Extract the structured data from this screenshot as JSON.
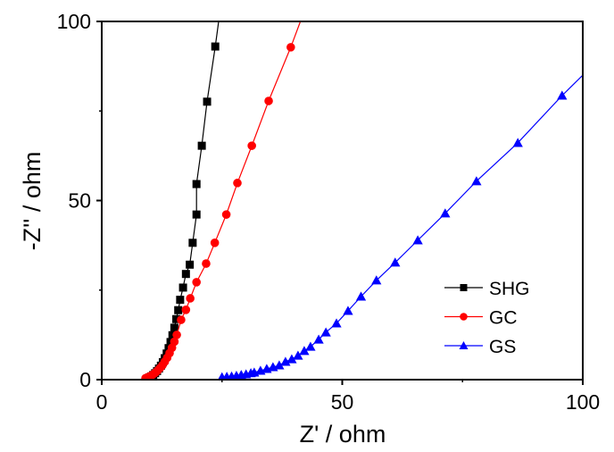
{
  "chart_data": {
    "type": "scatter",
    "title": "",
    "xlabel": "Z' / ohm",
    "ylabel": "-Z'' / ohm",
    "xlim": [
      0,
      100
    ],
    "ylim": [
      0,
      100
    ],
    "x_ticks": [
      0,
      50,
      100
    ],
    "y_ticks": [
      0,
      50,
      100
    ],
    "x_minor_ticks": [
      25,
      75
    ],
    "y_minor_ticks": [
      25,
      75
    ],
    "x_tick_labels": [
      "0",
      "50",
      "100"
    ],
    "y_tick_labels": [
      "0",
      "50",
      "100"
    ],
    "grid": false,
    "legend_position": "bottom-right",
    "series": [
      {
        "name": "SHG",
        "color": "#000000",
        "marker": "square",
        "points": [
          [
            9.5,
            0.3
          ],
          [
            9.9,
            0.6
          ],
          [
            10.3,
            0.9
          ],
          [
            10.7,
            1.3
          ],
          [
            11.1,
            1.8
          ],
          [
            11.5,
            2.4
          ],
          [
            11.9,
            3.1
          ],
          [
            12.3,
            3.9
          ],
          [
            12.7,
            4.9
          ],
          [
            13.1,
            6.0
          ],
          [
            13.5,
            7.3
          ],
          [
            13.9,
            8.8
          ],
          [
            14.3,
            10.5
          ],
          [
            14.7,
            12.4
          ],
          [
            15.1,
            14.5
          ],
          [
            15.5,
            16.9
          ],
          [
            15.9,
            19.4
          ],
          [
            16.3,
            22.3
          ],
          [
            16.9,
            25.7
          ],
          [
            17.5,
            29.5
          ],
          [
            18.3,
            32.1
          ],
          [
            18.9,
            38.2
          ],
          [
            19.7,
            46.1
          ],
          [
            19.7,
            54.6
          ],
          [
            20.8,
            65.3
          ],
          [
            21.9,
            77.6
          ],
          [
            23.6,
            93.0
          ],
          [
            24.3,
            100
          ]
        ]
      },
      {
        "name": "GC",
        "color": "#ff0000",
        "marker": "circle",
        "points": [
          [
            9.1,
            0.4
          ],
          [
            9.6,
            0.7
          ],
          [
            10.1,
            1.0
          ],
          [
            10.6,
            1.4
          ],
          [
            11.1,
            1.9
          ],
          [
            11.6,
            2.5
          ],
          [
            12.1,
            3.2
          ],
          [
            12.6,
            4.0
          ],
          [
            13.1,
            5.0
          ],
          [
            13.6,
            6.1
          ],
          [
            14.1,
            7.4
          ],
          [
            14.6,
            8.9
          ],
          [
            15.1,
            10.6
          ],
          [
            15.6,
            12.5
          ],
          [
            16.5,
            16.7
          ],
          [
            17.5,
            19.5
          ],
          [
            18.4,
            22.7
          ],
          [
            19.7,
            27.2
          ],
          [
            21.7,
            32.4
          ],
          [
            23.5,
            38.2
          ],
          [
            25.9,
            46.1
          ],
          [
            28.2,
            54.9
          ],
          [
            31.2,
            65.3
          ],
          [
            34.7,
            77.8
          ],
          [
            39.3,
            92.8
          ],
          [
            41.3,
            100
          ]
        ]
      },
      {
        "name": "GS",
        "color": "#0000ff",
        "marker": "triangle",
        "points": [
          [
            25.0,
            0.7
          ],
          [
            26.0,
            0.8
          ],
          [
            27.0,
            0.9
          ],
          [
            28.0,
            1.1
          ],
          [
            29.0,
            1.3
          ],
          [
            30.0,
            1.5
          ],
          [
            31.0,
            1.8
          ],
          [
            31.7,
            2.0
          ],
          [
            33.0,
            2.5
          ],
          [
            34.3,
            3.0
          ],
          [
            35.6,
            3.5
          ],
          [
            36.9,
            4.0
          ],
          [
            38.2,
            5.0
          ],
          [
            39.5,
            5.7
          ],
          [
            40.8,
            6.7
          ],
          [
            42.1,
            8.0
          ],
          [
            43.4,
            9.2
          ],
          [
            45.1,
            11.2
          ],
          [
            46.6,
            13.2
          ],
          [
            48.8,
            15.7
          ],
          [
            51.2,
            19.2
          ],
          [
            53.9,
            23.2
          ],
          [
            57.1,
            27.7
          ],
          [
            61.0,
            32.7
          ],
          [
            65.7,
            38.9
          ],
          [
            71.4,
            46.4
          ],
          [
            77.9,
            55.4
          ],
          [
            86.5,
            66.1
          ],
          [
            95.7,
            79.3
          ],
          [
            100,
            85.0
          ]
        ]
      }
    ]
  }
}
